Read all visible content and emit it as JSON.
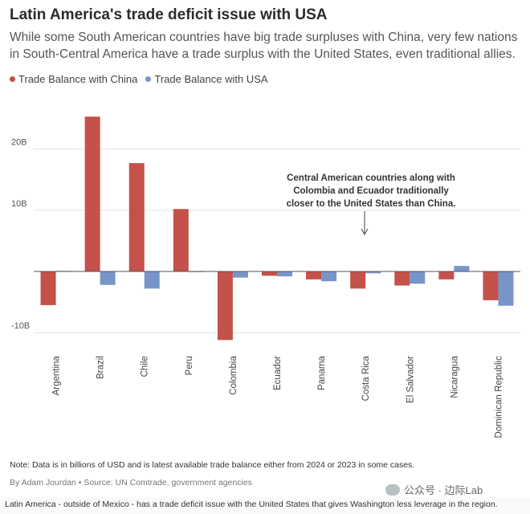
{
  "header": {
    "title": "Latin America's trade deficit issue with USA",
    "subtitle": "While some South American countries have big trade surpluses with China, very few nations in South-Central America have a trade surplus with the United States, even traditional allies."
  },
  "legend": {
    "china": "Trade Balance with China",
    "usa": "Trade Balance with USA"
  },
  "colors": {
    "china": "#c4514a",
    "usa": "#7895c9",
    "grid": "#e3e3e3",
    "zero": "#555555"
  },
  "annotation": {
    "lines": [
      "Central American countries along with",
      "Colombia and Ecuador traditionally",
      "closer to the United States than China."
    ]
  },
  "chart_data": {
    "type": "bar",
    "categories": [
      "Argentina",
      "Brazil",
      "Chile",
      "Peru",
      "Colombia",
      "Ecuador",
      "Panama",
      "Costa Rica",
      "El Salvador",
      "Nicaragua",
      "Dominican Republic"
    ],
    "series": [
      {
        "name": "Trade Balance with China",
        "values": [
          -5.5,
          25.3,
          17.7,
          10.2,
          -11.2,
          -0.7,
          -1.3,
          -2.8,
          -2.3,
          -1.3,
          -4.7
        ]
      },
      {
        "name": "Trade Balance with USA",
        "values": [
          0.1,
          -2.2,
          -2.8,
          -0.1,
          -1.0,
          -0.8,
          -1.6,
          -0.3,
          -2.0,
          0.9,
          -5.6
        ]
      }
    ],
    "yticks": [
      "20B",
      "10B",
      "-10B"
    ],
    "ytick_values": [
      20,
      10,
      -10
    ],
    "ylim": [
      -12,
      26
    ],
    "grid": true,
    "legend_position": "top-left"
  },
  "footer": {
    "note": "Note: Data is in billions of USD and is latest available trade balance either from 2024 or 2023 in some cases.",
    "byline": "By Adam Jourdan • Source: UN Comtrade, government agencies",
    "watermark": "公众号 · 边际Lab",
    "caption": "Latin America - outside of Mexico - has a trade deficit issue with the United States that gives Washington less leverage in the region."
  }
}
